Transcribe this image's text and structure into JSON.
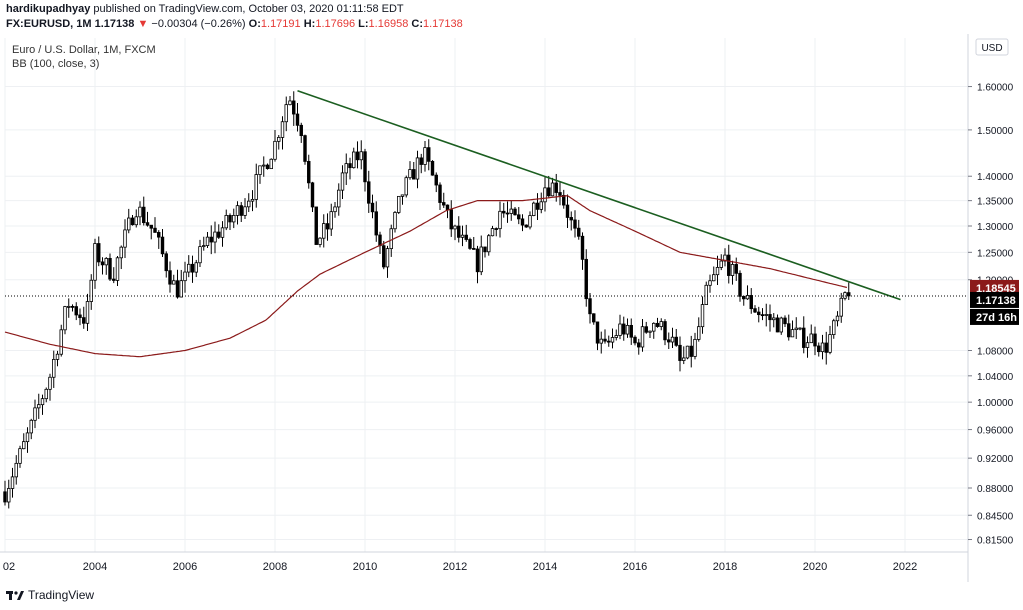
{
  "header": {
    "publisher": "hardikupadhyay",
    "published_text": "published on TradingView.com, October 03, 2020 01:11:58 EDT",
    "symbol": "FX:EURUSD, 1M",
    "last": "1.17138",
    "change_arrow": "▼",
    "change": "−0.00304 (−0.26%)",
    "o_label": "O:",
    "o": "1.17191",
    "h_label": "H:",
    "h": "1.17696",
    "l_label": "L:",
    "l": "1.16958",
    "c_label": "C:",
    "c": "1.17138"
  },
  "legend": {
    "instrument": "Euro / U.S. Dollar, 1M, FXCM",
    "indicator": "BB (100, close, 3)"
  },
  "currency_button": "USD",
  "price_tags": {
    "bb_value": "1.18545",
    "last_price": "1.17138",
    "countdown": "27d 16h"
  },
  "footer": {
    "brand": "TradingView"
  },
  "colors": {
    "up": "#ffffff",
    "down": "#000000",
    "candle_border": "#000000",
    "bb_basis": "#8b1a1a",
    "trendline": "#1b5e20",
    "grid": "#eef0f3",
    "bb_tag": "#8b1a1a",
    "last_tag": "#000000"
  },
  "chart_data": {
    "type": "candlestick",
    "scale": "log",
    "x_ticks": [
      "02",
      "2004",
      "2006",
      "2008",
      "2010",
      "2012",
      "2014",
      "2016",
      "2018",
      "2020",
      "2022"
    ],
    "y_ticks": [
      1.6,
      1.5,
      1.4,
      1.35,
      1.3,
      1.25,
      1.2,
      1.08,
      1.04,
      1.0,
      0.96,
      0.92,
      0.88,
      0.845,
      0.815
    ],
    "y_tick_labels": [
      "1.60000",
      "1.50000",
      "1.40000",
      "1.35000",
      "1.30000",
      "1.25000",
      "1.20000",
      "1.08000",
      "1.04000",
      "1.00000",
      "0.96000",
      "0.92000",
      "0.88000",
      "0.84500",
      "0.81500"
    ],
    "ylim": [
      0.8,
      1.72
    ],
    "xlim": [
      2002.0,
      2023.4
    ],
    "last_close": 1.17138,
    "close_anchors": [
      [
        2002.0,
        0.875
      ],
      [
        2002.5,
        0.95
      ],
      [
        2003.0,
        1.04
      ],
      [
        2003.4,
        1.16
      ],
      [
        2003.8,
        1.13
      ],
      [
        2004.0,
        1.25
      ],
      [
        2004.4,
        1.21
      ],
      [
        2004.9,
        1.34
      ],
      [
        2005.3,
        1.29
      ],
      [
        2005.8,
        1.18
      ],
      [
        2006.0,
        1.2
      ],
      [
        2006.5,
        1.27
      ],
      [
        2007.0,
        1.31
      ],
      [
        2007.5,
        1.37
      ],
      [
        2008.0,
        1.47
      ],
      [
        2008.3,
        1.58
      ],
      [
        2008.6,
        1.5
      ],
      [
        2008.9,
        1.27
      ],
      [
        2009.2,
        1.3
      ],
      [
        2009.5,
        1.4
      ],
      [
        2009.9,
        1.45
      ],
      [
        2010.4,
        1.22
      ],
      [
        2010.8,
        1.36
      ],
      [
        2011.3,
        1.45
      ],
      [
        2011.9,
        1.3
      ],
      [
        2012.5,
        1.23
      ],
      [
        2013.0,
        1.33
      ],
      [
        2013.5,
        1.3
      ],
      [
        2014.0,
        1.38
      ],
      [
        2014.3,
        1.38
      ],
      [
        2014.8,
        1.25
      ],
      [
        2015.0,
        1.13
      ],
      [
        2015.3,
        1.08
      ],
      [
        2015.7,
        1.12
      ],
      [
        2016.0,
        1.09
      ],
      [
        2016.4,
        1.13
      ],
      [
        2016.8,
        1.1
      ],
      [
        2017.0,
        1.06
      ],
      [
        2017.3,
        1.08
      ],
      [
        2017.6,
        1.18
      ],
      [
        2018.0,
        1.24
      ],
      [
        2018.4,
        1.17
      ],
      [
        2018.8,
        1.14
      ],
      [
        2019.3,
        1.12
      ],
      [
        2019.7,
        1.1
      ],
      [
        2020.0,
        1.1
      ],
      [
        2020.2,
        1.08
      ],
      [
        2020.5,
        1.13
      ],
      [
        2020.7,
        1.18
      ],
      [
        2020.75,
        1.17138
      ]
    ],
    "bb_basis": [
      [
        2002.0,
        1.11
      ],
      [
        2003.0,
        1.09
      ],
      [
        2004.0,
        1.075
      ],
      [
        2005.0,
        1.07
      ],
      [
        2006.0,
        1.08
      ],
      [
        2007.0,
        1.1
      ],
      [
        2007.8,
        1.13
      ],
      [
        2008.5,
        1.18
      ],
      [
        2009.0,
        1.21
      ],
      [
        2010.0,
        1.25
      ],
      [
        2011.0,
        1.29
      ],
      [
        2011.8,
        1.33
      ],
      [
        2012.5,
        1.35
      ],
      [
        2013.5,
        1.35
      ],
      [
        2014.5,
        1.36
      ],
      [
        2015.0,
        1.33
      ],
      [
        2016.0,
        1.29
      ],
      [
        2017.0,
        1.25
      ],
      [
        2018.0,
        1.235
      ],
      [
        2019.0,
        1.22
      ],
      [
        2020.0,
        1.2
      ],
      [
        2020.75,
        1.18545
      ]
    ],
    "trendline": [
      [
        2008.5,
        1.59
      ],
      [
        2021.9,
        1.165
      ]
    ]
  }
}
